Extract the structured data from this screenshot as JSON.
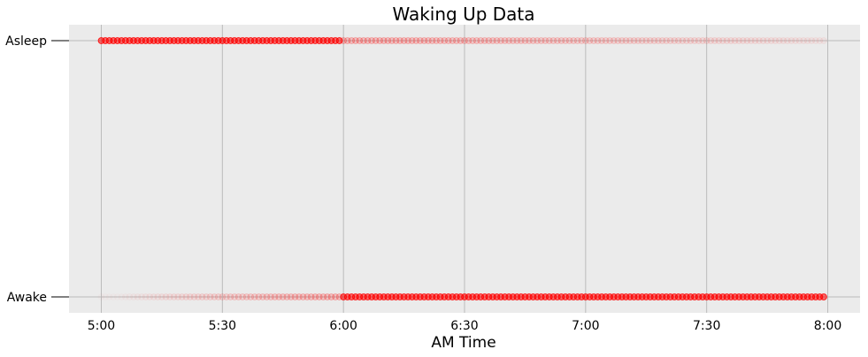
{
  "chart_data": {
    "type": "scatter",
    "title": "Waking Up Data",
    "xlabel": "AM Time",
    "ylabel": "",
    "x_unit": "minutes",
    "xlim": [
      "4:52",
      "8:08"
    ],
    "x_ticks": [
      "5:00",
      "5:30",
      "6:00",
      "6:30",
      "7:00",
      "7:30",
      "8:00"
    ],
    "y_categories": [
      "Awake",
      "Asleep"
    ],
    "grid": true,
    "marker_color": "#ff0000",
    "background_color": "#ebebeb",
    "grid_color": "#bbbbbb",
    "series": [
      {
        "y": "Asleep",
        "x_range": [
          "5:00",
          "7:59"
        ],
        "step_minutes": 1,
        "density": "solid from 5:00 to 6:00, fading afterwards"
      },
      {
        "y": "Awake",
        "x_range": [
          "5:00",
          "7:59"
        ],
        "step_minutes": 1,
        "density": "faint before 6:00, solid from 6:00 to 8:00"
      }
    ]
  }
}
